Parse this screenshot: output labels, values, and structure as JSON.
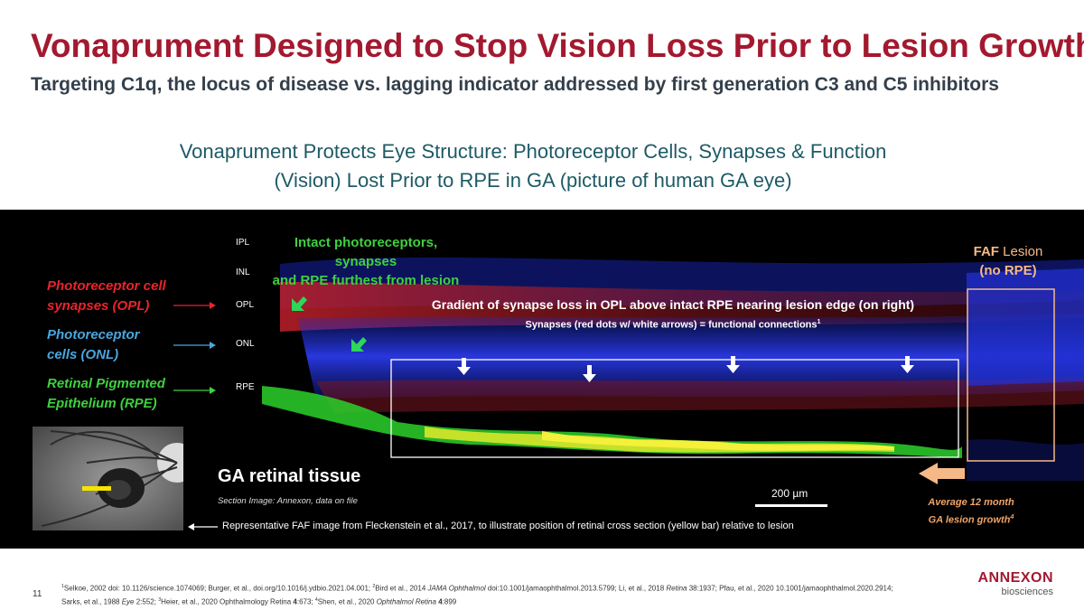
{
  "header": {
    "title": "Vonaprument Designed to Stop Vision Loss Prior to Lesion Growth",
    "subtitle": "Targeting C1q, the locus of disease vs. lagging indicator addressed by first generation C3 and C5 inhibitors"
  },
  "section": {
    "heading_line1": "Vonaprument Protects Eye Structure: Photoreceptor Cells, Synapses & Function",
    "heading_line2": "(Vision) Lost Prior to RPE in GA (picture of human GA eye)"
  },
  "figure": {
    "left_labels": [
      {
        "line1": "Photoreceptor cell",
        "line2": "synapses (OPL)",
        "color": "#e8252b"
      },
      {
        "line1": "Photoreceptor",
        "line2": "cells (ONL)",
        "color": "#4aa6df"
      },
      {
        "line1": "Retinal Pigmented",
        "line2": "Epithelium (RPE)",
        "color": "#3fd13f"
      }
    ],
    "layers": [
      "IPL",
      "INL",
      "OPL",
      "ONL",
      "RPE"
    ],
    "intact_note_line1": "Intact photoreceptors, synapses",
    "intact_note_line2": "and RPE furthest from lesion",
    "faf_bold": "FAF",
    "faf_rest": " Lesion",
    "faf_line2": "(no RPE)",
    "gradient_line1": "Gradient of synapse loss in OPL above intact RPE nearing lesion edge (on right)",
    "gradient_line2": "Synapses (red dots w/ white arrows) = functional connections",
    "gradient_sup": "1",
    "ga_title": "GA retinal tissue",
    "section_source": "Section Image: Annexon, data on file",
    "scale_label": "200 µm",
    "growth_line1": "Average 12 month",
    "growth_line2": "GA lesion growth",
    "growth_sup": "4",
    "representative_note": "Representative FAF image from Fleckenstein et al., 2017, to illustrate position of retinal cross section (yellow bar) relative to lesion",
    "colors": {
      "opl_arrow": "#e8252b",
      "onl_arrow": "#4aa6df",
      "rpe_arrow": "#3fd13f",
      "faf_box": "#f5b987"
    }
  },
  "footer": {
    "page_number": "11",
    "references": [
      {
        "t": "sup",
        "v": "1"
      },
      {
        "t": "text",
        "v": "Selkoe, 2002 doi: 10.1126/science.1074069; Burger, et al., doi.org/10.1016/j.ydbio.2021.04.001; "
      },
      {
        "t": "sup",
        "v": "2"
      },
      {
        "t": "text",
        "v": "Bird et al., 2014 "
      },
      {
        "t": "i",
        "v": "JAMA Ophthalmol"
      },
      {
        "t": "text",
        "v": " doi:10.1001/jamaophthalmol.2013.5799; Li, et al., 2018 "
      },
      {
        "t": "i",
        "v": "Retina"
      },
      {
        "t": "text",
        "v": " 38:1937; Pfau, et al., 2020 10.1001/jamaophthalmol.2020.2914; Sarks, et al., 1988 "
      },
      {
        "t": "i",
        "v": "Eye"
      },
      {
        "t": "text",
        "v": " 2:552; "
      },
      {
        "t": "sup",
        "v": "3"
      },
      {
        "t": "text",
        "v": "Heier, et al., 2020 Ophthalmology Retina "
      },
      {
        "t": "b",
        "v": "4"
      },
      {
        "t": "text",
        "v": ":673; "
      },
      {
        "t": "sup",
        "v": "4"
      },
      {
        "t": "text",
        "v": "Shen, et al., 2020 "
      },
      {
        "t": "i",
        "v": "Ophthalmol Retina"
      },
      {
        "t": "text",
        "v": " "
      },
      {
        "t": "b",
        "v": "4"
      },
      {
        "t": "text",
        "v": ":899"
      }
    ],
    "logo_name": "ANNEXON",
    "logo_sub": "biosciences"
  }
}
